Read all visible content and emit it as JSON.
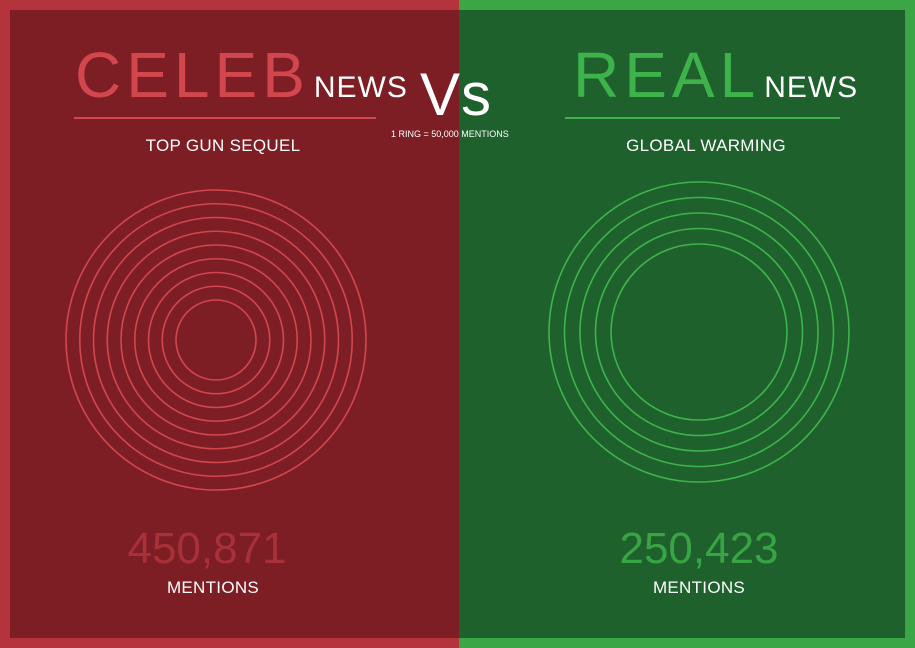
{
  "colors": {
    "left_bg": "#7d1e25",
    "left_border": "#b5333c",
    "left_accent": "#d2464e",
    "left_count": "#a83038",
    "right_bg": "#1e612d",
    "right_border": "#3aa645",
    "right_accent": "#3fb34b",
    "right_count": "#38a444"
  },
  "left": {
    "title_big": "CELEB",
    "title_small": "NEWS",
    "topic": "TOP GUN SEQUEL",
    "count": "450,871",
    "count_label": "MENTIONS"
  },
  "right": {
    "title_big": "REAL",
    "title_small": "NEWS",
    "topic": "GLOBAL WARMING",
    "count": "250,423",
    "count_label": "MENTIONS"
  },
  "center": {
    "vs": "Vs",
    "legend": "1 RING = 50,000 MENTIONS"
  },
  "chart_data": {
    "type": "ring-comparison",
    "unit_per_ring": 50000,
    "series": [
      {
        "name": "TOP GUN SEQUEL",
        "value": 450871,
        "rings": 9
      },
      {
        "name": "GLOBAL WARMING",
        "value": 250423,
        "rings": 5
      }
    ]
  }
}
